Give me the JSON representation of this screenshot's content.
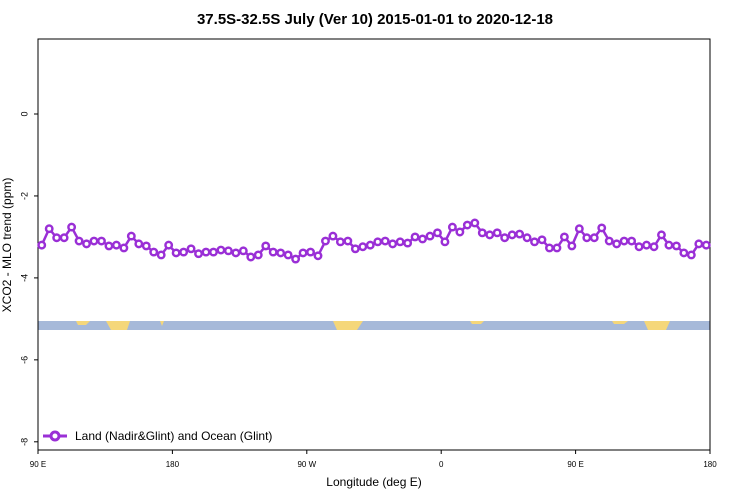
{
  "chart_data": {
    "type": "line",
    "title": "37.5S-32.5S July (Ver 10)   2015-01-01 to 2020-12-18",
    "x_label": "Longitude (deg E)",
    "y_label": "XCO2 - MLO trend (ppm)",
    "xlim": [
      90,
      540
    ],
    "xticks": [
      {
        "value": 90,
        "label": "90 E"
      },
      {
        "value": 180,
        "label": "180"
      },
      {
        "value": 270,
        "label": "90 W"
      },
      {
        "value": 360,
        "label": "0"
      },
      {
        "value": 450,
        "label": "90 E"
      },
      {
        "value": 540,
        "label": "180"
      }
    ],
    "ylim": [
      -8.2,
      1.83
    ],
    "yticks": [
      -8,
      -6,
      -4,
      -2,
      0
    ],
    "legend_position": "bottom-left",
    "x": [
      92.5,
      97.5,
      102.5,
      107.5,
      112.5,
      117.5,
      122.5,
      127.5,
      132.5,
      137.5,
      142.5,
      147.5,
      152.5,
      157.5,
      162.5,
      167.5,
      172.5,
      177.5,
      182.5,
      187.5,
      192.5,
      197.5,
      202.5,
      207.5,
      212.5,
      217.5,
      222.5,
      227.5,
      232.5,
      237.5,
      242.5,
      247.5,
      252.5,
      257.5,
      262.5,
      267.5,
      272.5,
      277.5,
      282.5,
      287.5,
      292.5,
      297.5,
      302.5,
      307.5,
      312.5,
      317.5,
      322.5,
      327.5,
      332.5,
      337.5,
      342.5,
      347.5,
      352.5,
      357.5,
      362.5,
      367.5,
      372.5,
      377.5,
      382.5,
      387.5,
      392.5,
      397.5,
      402.5,
      407.5,
      412.5,
      417.5,
      422.5,
      427.5,
      432.5,
      437.5,
      442.5,
      447.5,
      452.5,
      457.5,
      462.5,
      467.5,
      472.5,
      477.5,
      482.5,
      487.5,
      492.5,
      497.5,
      502.5,
      507.5,
      512.5,
      517.5,
      522.5,
      527.5,
      532.5,
      537.5
    ],
    "series": [
      {
        "name": "Land (Nadir&Glint) and Ocean (Glint)",
        "color": "#9a2fd6",
        "values": [
          -3.2,
          -2.8,
          -3.02,
          -3.02,
          -2.76,
          -3.1,
          -3.17,
          -3.1,
          -3.1,
          -3.22,
          -3.2,
          -3.27,
          -2.98,
          -3.17,
          -3.22,
          -3.37,
          -3.44,
          -3.2,
          -3.39,
          -3.37,
          -3.29,
          -3.41,
          -3.37,
          -3.37,
          -3.32,
          -3.34,
          -3.39,
          -3.34,
          -3.49,
          -3.44,
          -3.22,
          -3.37,
          -3.39,
          -3.44,
          -3.54,
          -3.39,
          -3.37,
          -3.46,
          -3.1,
          -2.98,
          -3.12,
          -3.1,
          -3.29,
          -3.24,
          -3.2,
          -3.12,
          -3.1,
          -3.17,
          -3.12,
          -3.15,
          -3.0,
          -3.05,
          -2.98,
          -2.9,
          -3.12,
          -2.76,
          -2.88,
          -2.71,
          -2.66,
          -2.9,
          -2.95,
          -2.9,
          -3.02,
          -2.95,
          -2.93,
          -3.02,
          -3.12,
          -3.07,
          -3.27,
          -3.27,
          -3.0,
          -3.22,
          -2.8,
          -3.02,
          -3.02,
          -2.78,
          -3.1,
          -3.17,
          -3.1,
          -3.1,
          -3.24,
          -3.2,
          -3.24,
          -2.95,
          -3.2,
          -3.22,
          -3.39,
          -3.44,
          -3.17,
          -3.2
        ]
      }
    ]
  }
}
